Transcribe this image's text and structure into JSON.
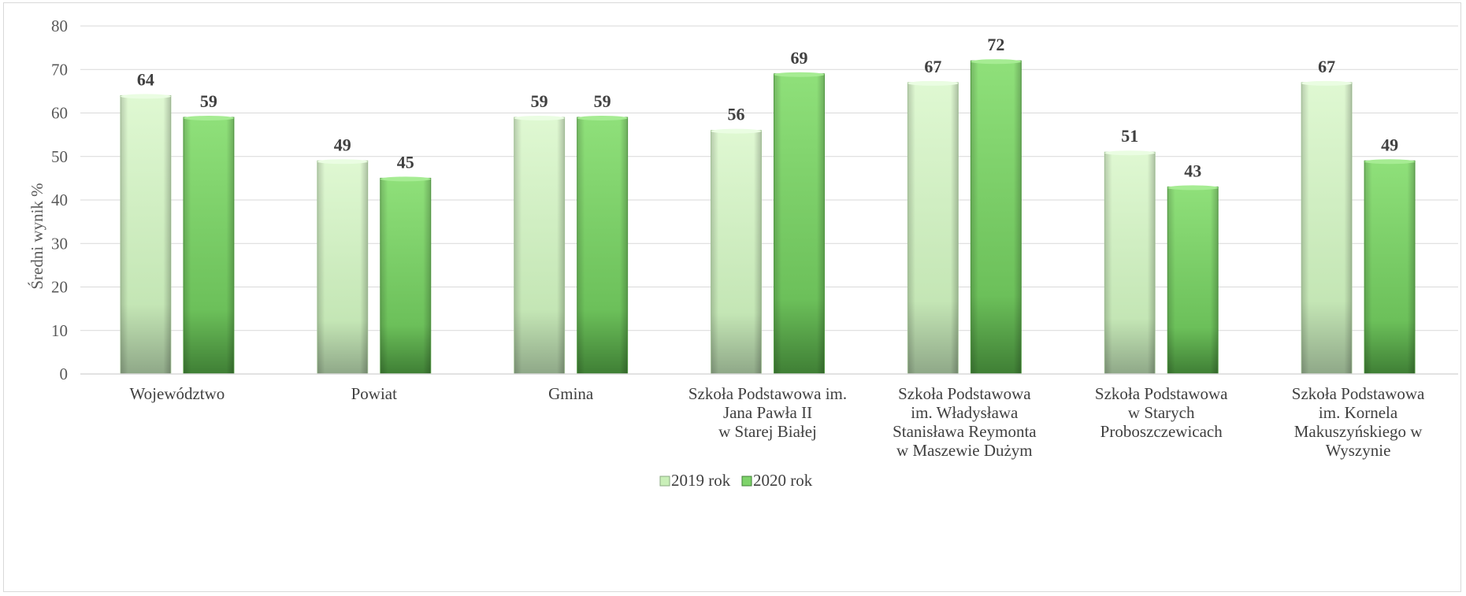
{
  "chart_data": {
    "type": "bar",
    "ylabel": "Średni wynik %",
    "ylim": [
      0,
      80
    ],
    "yticks": [
      0,
      10,
      20,
      30,
      40,
      50,
      60,
      70,
      80
    ],
    "grid": true,
    "legend_position": "bottom",
    "categories": [
      [
        "Województwo"
      ],
      [
        "Powiat"
      ],
      [
        "Gmina"
      ],
      [
        "Szkoła Podstawowa im.",
        "Jana Pawła II",
        "w Starej Białej"
      ],
      [
        "Szkoła Podstawowa",
        "im. Władysława",
        "Stanisława Reymonta",
        "w Maszewie Dużym"
      ],
      [
        "Szkoła Podstawowa",
        "w Starych",
        "Proboszczewicach"
      ],
      [
        "Szkoła Podstawowa",
        "im. Kornela",
        "Makuszyńskiego w",
        "Wyszynie"
      ]
    ],
    "series": [
      {
        "name": "2019 rok",
        "values": [
          64,
          49,
          59,
          56,
          67,
          51,
          67
        ],
        "color": "#c9efb8"
      },
      {
        "name": "2020 rok",
        "values": [
          59,
          45,
          59,
          69,
          72,
          43,
          49
        ],
        "color": "#7ed36a"
      }
    ]
  }
}
